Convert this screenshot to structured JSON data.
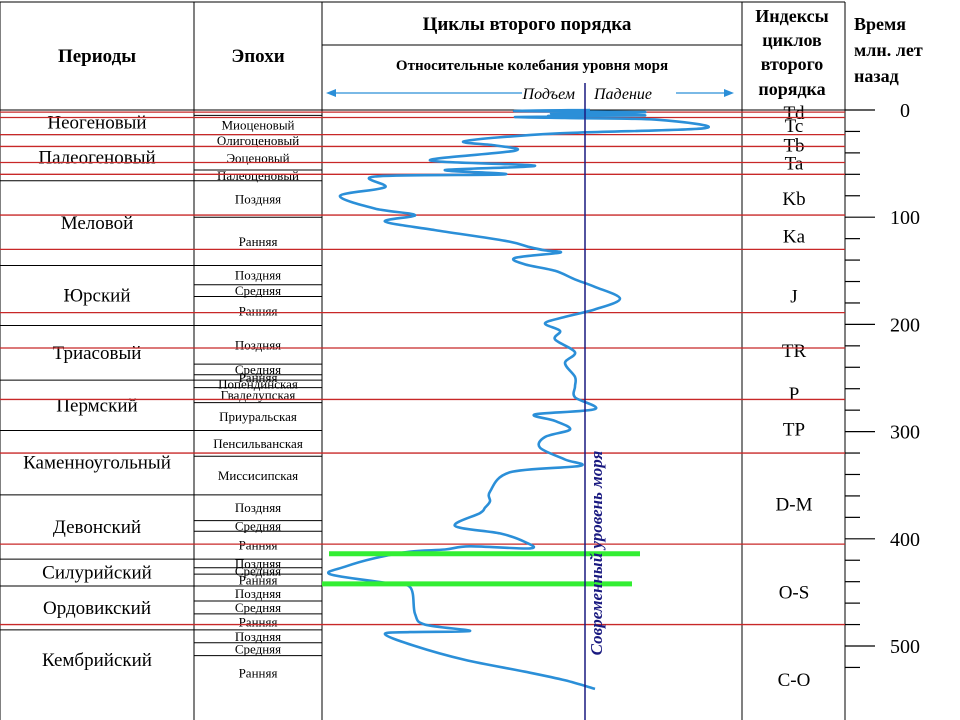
{
  "headers": {
    "periods": "Периоды",
    "epochs": "Эпохи",
    "cycles_title": "Циклы второго порядка",
    "cycles_subtitle": "Относительные колебания уровня моря",
    "rise": "Подъем",
    "fall": "Падение",
    "index_lines": [
      "Индексы",
      "циклов",
      "второго",
      "порядка"
    ],
    "time_lines": [
      "Время",
      "млн. лет",
      "назад"
    ]
  },
  "present_sea_level_label": "Современный уровень моря",
  "colors": {
    "sea_curve": "#2b8fd8",
    "boundary_line": "#c82828",
    "marker_band": "#33ee33",
    "present_level_line": "#1a1a80",
    "grid": "#000000"
  },
  "age_axis": {
    "range": [
      0,
      520
    ],
    "major_ticks": [
      0,
      100,
      200,
      300,
      400,
      500
    ],
    "minor_step": 20
  },
  "periods": [
    {
      "name": "Неогеновый",
      "age_start": 0,
      "age_end": 23
    },
    {
      "name": "Палеогеновый",
      "age_start": 23,
      "age_end": 66
    },
    {
      "name": "Меловой",
      "age_start": 66,
      "age_end": 145
    },
    {
      "name": "Юрский",
      "age_start": 145,
      "age_end": 201
    },
    {
      "name": "Триасовый",
      "age_start": 201,
      "age_end": 252
    },
    {
      "name": "Пермский",
      "age_start": 252,
      "age_end": 299
    },
    {
      "name": "Каменноугольный",
      "age_start": 299,
      "age_end": 359
    },
    {
      "name": "Девонский",
      "age_start": 359,
      "age_end": 419
    },
    {
      "name": "Силурийский",
      "age_start": 419,
      "age_end": 444
    },
    {
      "name": "Ордовикский",
      "age_start": 444,
      "age_end": 485
    },
    {
      "name": "Кембрийский",
      "age_start": 485,
      "age_end": 541
    }
  ],
  "epochs": [
    {
      "name": "Миоценовый",
      "age_start": 5,
      "age_end": 23
    },
    {
      "name": "Олигоценовый",
      "age_start": 23,
      "age_end": 34
    },
    {
      "name": "Эоценовый",
      "age_start": 34,
      "age_end": 56
    },
    {
      "name": "Палеоценовый",
      "age_start": 56,
      "age_end": 66
    },
    {
      "name": "Поздняя",
      "age_start": 66,
      "age_end": 100
    },
    {
      "name": "Ранняя",
      "age_start": 100,
      "age_end": 145
    },
    {
      "name": "Поздняя",
      "age_start": 145,
      "age_end": 163
    },
    {
      "name": "Средняя",
      "age_start": 163,
      "age_end": 174
    },
    {
      "name": "Ранняя",
      "age_start": 174,
      "age_end": 201
    },
    {
      "name": "Поздняя",
      "age_start": 201,
      "age_end": 237
    },
    {
      "name": "Средняя",
      "age_start": 237,
      "age_end": 247
    },
    {
      "name": "Ранняя",
      "age_start": 247,
      "age_end": 252
    },
    {
      "name": "Попендинская",
      "age_start": 252,
      "age_end": 259
    },
    {
      "name": "Гваделупская",
      "age_start": 259,
      "age_end": 273
    },
    {
      "name": "Приуральская",
      "age_start": 273,
      "age_end": 299
    },
    {
      "name": "Пенсильванская",
      "age_start": 299,
      "age_end": 323
    },
    {
      "name": "Миссисипская",
      "age_start": 323,
      "age_end": 359
    },
    {
      "name": "Поздняя",
      "age_start": 359,
      "age_end": 383
    },
    {
      "name": "Средняя",
      "age_start": 383,
      "age_end": 393
    },
    {
      "name": "Ранняя",
      "age_start": 393,
      "age_end": 419
    },
    {
      "name": "Поздняя",
      "age_start": 419,
      "age_end": 427
    },
    {
      "name": "Средняя",
      "age_start": 427,
      "age_end": 433
    },
    {
      "name": "Ранняя",
      "age_start": 433,
      "age_end": 444
    },
    {
      "name": "Поздняя",
      "age_start": 444,
      "age_end": 458
    },
    {
      "name": "Средняя",
      "age_start": 458,
      "age_end": 470
    },
    {
      "name": "Ранняя",
      "age_start": 470,
      "age_end": 485
    },
    {
      "name": "Поздняя",
      "age_start": 485,
      "age_end": 497
    },
    {
      "name": "Средняя",
      "age_start": 497,
      "age_end": 509
    },
    {
      "name": "Ранняя",
      "age_start": 509,
      "age_end": 541
    }
  ],
  "cycle_indices": [
    {
      "label": "Td",
      "age": 2
    },
    {
      "label": "Tc",
      "age": 14
    },
    {
      "label": "Tb",
      "age": 32
    },
    {
      "label": "Ta",
      "age": 49
    },
    {
      "label": "Kb",
      "age": 82
    },
    {
      "label": "Ka",
      "age": 117
    },
    {
      "label": "J",
      "age": 173
    },
    {
      "label": "TR",
      "age": 224
    },
    {
      "label": "P",
      "age": 264
    },
    {
      "label": "TP",
      "age": 297
    },
    {
      "label": "D-M",
      "age": 367
    },
    {
      "label": "O-S",
      "age": 449
    },
    {
      "label": "C-O",
      "age": 531
    }
  ],
  "cycle_boundaries": [
    2,
    7,
    23,
    34,
    49,
    60,
    98,
    130,
    189,
    222,
    270,
    320,
    405,
    480
  ],
  "green_marker_ages": [
    414,
    442
  ],
  "present_sea_level": 0,
  "chart_data": {
    "type": "line",
    "x_meaning": "relative sea level, negative = rise, positive = fall, 0 = present sea level",
    "x_range": [
      -260,
      130
    ],
    "y_label": "Время млн. лет назад",
    "points": [
      [
        5,
        0
      ],
      [
        -70,
        1
      ],
      [
        60,
        2
      ],
      [
        -30,
        3
      ],
      [
        -10,
        4
      ],
      [
        60,
        5
      ],
      [
        -35,
        5.5
      ],
      [
        -10,
        6
      ],
      [
        -70,
        6.5
      ],
      [
        -20,
        7.5
      ],
      [
        70,
        9
      ],
      [
        120,
        17
      ],
      [
        -30,
        22
      ],
      [
        -120,
        29
      ],
      [
        -90,
        33
      ],
      [
        -70,
        38
      ],
      [
        -155,
        47
      ],
      [
        -50,
        52
      ],
      [
        -140,
        56
      ],
      [
        -80,
        60
      ],
      [
        -210,
        62
      ],
      [
        -200,
        72
      ],
      [
        -245,
        80
      ],
      [
        -210,
        92
      ],
      [
        -170,
        98
      ],
      [
        -200,
        104
      ],
      [
        -150,
        112
      ],
      [
        -80,
        122
      ],
      [
        -55,
        128
      ],
      [
        -40,
        131
      ],
      [
        -25,
        133
      ],
      [
        -70,
        138
      ],
      [
        -60,
        144
      ],
      [
        -30,
        150
      ],
      [
        -10,
        158
      ],
      [
        10,
        165
      ],
      [
        35,
        176
      ],
      [
        10,
        186
      ],
      [
        -20,
        193
      ],
      [
        -40,
        199
      ],
      [
        -25,
        206
      ],
      [
        -30,
        214
      ],
      [
        -10,
        226
      ],
      [
        -20,
        236
      ],
      [
        -10,
        249
      ],
      [
        -10,
        258
      ],
      [
        -10,
        268
      ],
      [
        10,
        279
      ],
      [
        -50,
        284
      ],
      [
        -30,
        290
      ],
      [
        -15,
        298
      ],
      [
        -40,
        305
      ],
      [
        -45,
        315
      ],
      [
        -20,
        326
      ],
      [
        -5,
        332
      ],
      [
        -75,
        338
      ],
      [
        -95,
        356
      ],
      [
        -95,
        365
      ],
      [
        -100,
        371
      ],
      [
        -105,
        376
      ],
      [
        -130,
        388
      ],
      [
        -85,
        395
      ],
      [
        -60,
        403
      ],
      [
        -55,
        409
      ],
      [
        -115,
        407
      ],
      [
        -140,
        410
      ],
      [
        -175,
        412
      ],
      [
        -210,
        418
      ],
      [
        -240,
        426
      ],
      [
        -255,
        433
      ],
      [
        -200,
        441
      ],
      [
        -175,
        445
      ],
      [
        -170,
        470
      ],
      [
        -160,
        480
      ],
      [
        -115,
        486
      ],
      [
        -175,
        487
      ],
      [
        -200,
        489
      ],
      [
        -170,
        500
      ],
      [
        -120,
        513
      ],
      [
        -60,
        524
      ],
      [
        -20,
        532
      ],
      [
        10,
        540
      ]
    ]
  }
}
